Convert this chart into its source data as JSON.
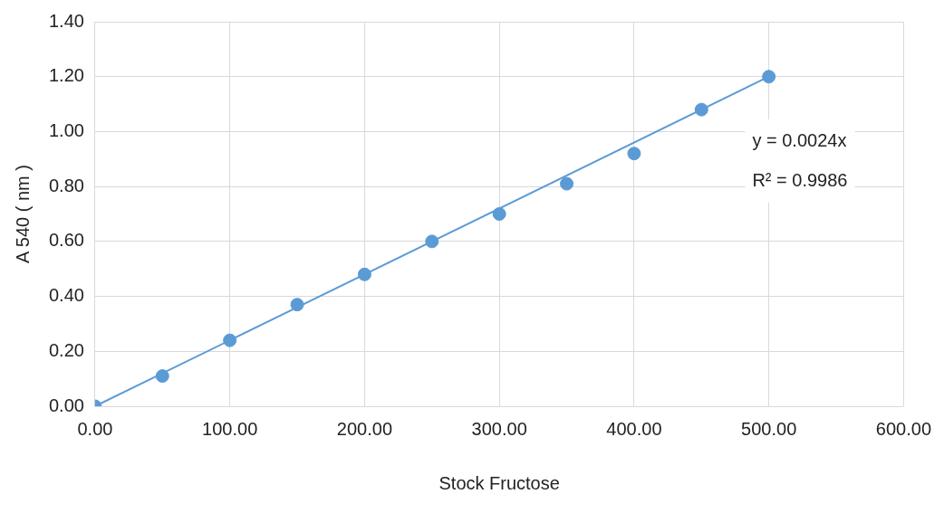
{
  "chart_data": {
    "type": "scatter",
    "xlabel": "Stock Fructose",
    "ylabel": "A 540 ( nm )",
    "x": [
      0,
      50,
      100,
      150,
      200,
      250,
      300,
      350,
      400,
      450,
      500
    ],
    "series": [
      {
        "color": "#5b9bd5",
        "marker": "circle",
        "values": [
          0,
          0.11,
          0.24,
          0.37,
          0.48,
          0.6,
          0.7,
          0.81,
          0.92,
          1.08,
          1.2
        ]
      },
      {
        "type": "line",
        "color": "#5b9bd5",
        "marker": "none",
        "x": [
          0,
          500
        ],
        "values": [
          0,
          1.2
        ]
      }
    ],
    "xlim": [
      0,
      600
    ],
    "xticks": [
      {
        "value": 0,
        "label": "0.00"
      },
      {
        "value": 100,
        "label": "100.00"
      },
      {
        "value": 200,
        "label": "200.00"
      },
      {
        "value": 300,
        "label": "300.00"
      },
      {
        "value": 400,
        "label": "400.00"
      },
      {
        "value": 500,
        "label": "500.00"
      },
      {
        "value": 600,
        "label": "600.00"
      }
    ],
    "ylim": [
      0,
      1.4
    ],
    "yticks": [
      {
        "value": 0,
        "label": "0.00"
      },
      {
        "value": 0.2,
        "label": "0.20"
      },
      {
        "value": 0.4,
        "label": "0.40"
      },
      {
        "value": 0.6,
        "label": "0.60"
      },
      {
        "value": 0.8,
        "label": "0.80"
      },
      {
        "value": 1,
        "label": "1.00"
      },
      {
        "value": 1.2,
        "label": "1.20"
      },
      {
        "value": 1.4,
        "label": "1.40"
      }
    ],
    "annotations": [
      "y = 0.0024x",
      "R² = 0.9986"
    ],
    "grid": true,
    "legend": false
  }
}
